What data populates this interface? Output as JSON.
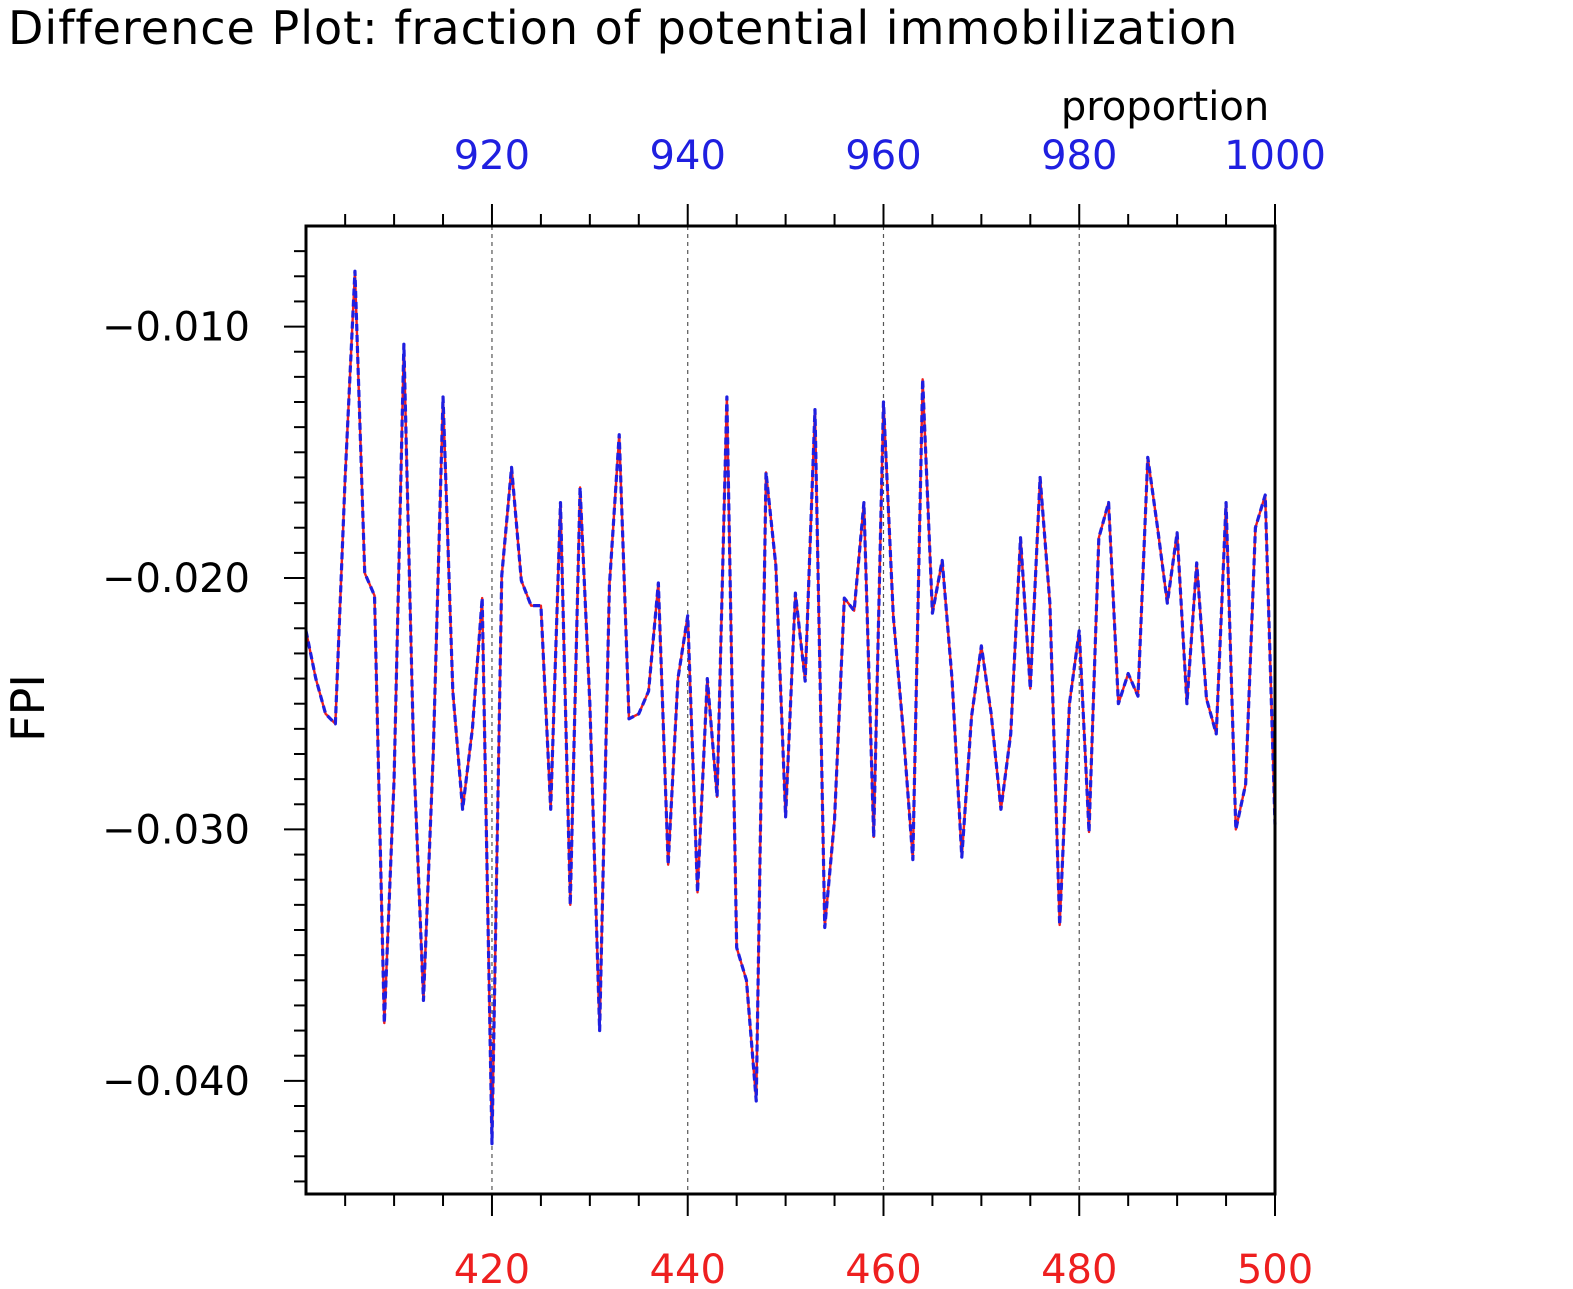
{
  "colors": {
    "top_axis": "#1f1fe0",
    "bottom_axis": "#ee1f1f",
    "axis_line": "#000000",
    "grid": "#555555"
  },
  "chart_data": {
    "type": "line",
    "title": "Difference Plot: fraction of potential immobilization",
    "ylabel": "FPI",
    "x2label": "proportion",
    "xlim": [
      401,
      500
    ],
    "x2lim": [
      901,
      1000
    ],
    "ylim": [
      -0.0445,
      -0.006
    ],
    "x_ticks": [
      420,
      440,
      460,
      480,
      500
    ],
    "x2_ticks": [
      920,
      940,
      960,
      980,
      1000
    ],
    "y_ticks": [
      -0.01,
      -0.02,
      -0.03,
      -0.04
    ],
    "y_tick_labels": [
      "−0.010",
      "−0.020",
      "−0.030",
      "−0.040"
    ],
    "grid": "vertical dashed at major x ticks",
    "x": [
      401,
      402,
      403,
      404,
      405,
      406,
      407,
      408,
      409,
      410,
      411,
      412,
      413,
      414,
      415,
      416,
      417,
      418,
      419,
      420,
      421,
      422,
      423,
      424,
      425,
      426,
      427,
      428,
      429,
      430,
      431,
      432,
      433,
      434,
      435,
      436,
      437,
      438,
      439,
      440,
      441,
      442,
      443,
      444,
      445,
      446,
      447,
      448,
      449,
      450,
      451,
      452,
      453,
      454,
      455,
      456,
      457,
      458,
      459,
      460,
      461,
      462,
      463,
      464,
      465,
      466,
      467,
      468,
      469,
      470,
      471,
      472,
      473,
      474,
      475,
      476,
      477,
      478,
      479,
      480,
      481,
      482,
      483,
      484,
      485,
      486,
      487,
      488,
      489,
      490,
      491,
      492,
      493,
      494,
      495,
      496,
      497,
      498,
      499,
      500
    ],
    "series": [
      {
        "style": "solid",
        "color": "#ee1f1f",
        "values": [
          -0.0221,
          -0.024,
          -0.0254,
          -0.0258,
          -0.016,
          -0.0078,
          -0.0198,
          -0.0207,
          -0.0377,
          -0.028,
          -0.0107,
          -0.027,
          -0.0368,
          -0.027,
          -0.0128,
          -0.0245,
          -0.0292,
          -0.026,
          -0.0208,
          -0.0425,
          -0.0199,
          -0.0156,
          -0.0201,
          -0.0211,
          -0.0211,
          -0.0292,
          -0.017,
          -0.033,
          -0.0164,
          -0.025,
          -0.038,
          -0.0203,
          -0.0143,
          -0.0256,
          -0.0254,
          -0.0245,
          -0.0202,
          -0.0314,
          -0.024,
          -0.0215,
          -0.0325,
          -0.024,
          -0.0287,
          -0.0128,
          -0.0347,
          -0.036,
          -0.0408,
          -0.0158,
          -0.0195,
          -0.0295,
          -0.0206,
          -0.0241,
          -0.0133,
          -0.0339,
          -0.0296,
          -0.0208,
          -0.0213,
          -0.017,
          -0.0303,
          -0.013,
          -0.0215,
          -0.026,
          -0.0312,
          -0.0121,
          -0.0214,
          -0.0193,
          -0.024,
          -0.0311,
          -0.0255,
          -0.0227,
          -0.0254,
          -0.0292,
          -0.0262,
          -0.0184,
          -0.0244,
          -0.016,
          -0.021,
          -0.0338,
          -0.025,
          -0.0221,
          -0.0301,
          -0.0184,
          -0.017,
          -0.025,
          -0.0238,
          -0.0247,
          -0.0152,
          -0.018,
          -0.021,
          -0.0182,
          -0.025,
          -0.0194,
          -0.0248,
          -0.0262,
          -0.017,
          -0.03,
          -0.0282,
          -0.018,
          -0.0167,
          -0.0298
        ]
      },
      {
        "style": "dashed",
        "color": "#1f1fe0",
        "values": [
          -0.0221,
          -0.024,
          -0.0254,
          -0.0258,
          -0.016,
          -0.0078,
          -0.0198,
          -0.0207,
          -0.0377,
          -0.028,
          -0.0107,
          -0.027,
          -0.0368,
          -0.027,
          -0.0128,
          -0.0245,
          -0.0292,
          -0.026,
          -0.0208,
          -0.0425,
          -0.0199,
          -0.0156,
          -0.0201,
          -0.0211,
          -0.0211,
          -0.0292,
          -0.017,
          -0.033,
          -0.0164,
          -0.025,
          -0.038,
          -0.0203,
          -0.0143,
          -0.0256,
          -0.0254,
          -0.0245,
          -0.0202,
          -0.0314,
          -0.024,
          -0.0215,
          -0.0325,
          -0.024,
          -0.0287,
          -0.0128,
          -0.0347,
          -0.036,
          -0.0408,
          -0.0158,
          -0.0195,
          -0.0295,
          -0.0206,
          -0.0241,
          -0.0133,
          -0.0339,
          -0.0296,
          -0.0208,
          -0.0213,
          -0.017,
          -0.0303,
          -0.013,
          -0.0215,
          -0.026,
          -0.0312,
          -0.0121,
          -0.0214,
          -0.0193,
          -0.024,
          -0.0311,
          -0.0255,
          -0.0227,
          -0.0254,
          -0.0292,
          -0.0262,
          -0.0184,
          -0.0244,
          -0.016,
          -0.021,
          -0.0338,
          -0.025,
          -0.0221,
          -0.0301,
          -0.0184,
          -0.017,
          -0.025,
          -0.0238,
          -0.0247,
          -0.0152,
          -0.018,
          -0.021,
          -0.0182,
          -0.025,
          -0.0194,
          -0.0248,
          -0.0262,
          -0.017,
          -0.03,
          -0.0282,
          -0.018,
          -0.0167,
          -0.0298
        ]
      }
    ]
  }
}
